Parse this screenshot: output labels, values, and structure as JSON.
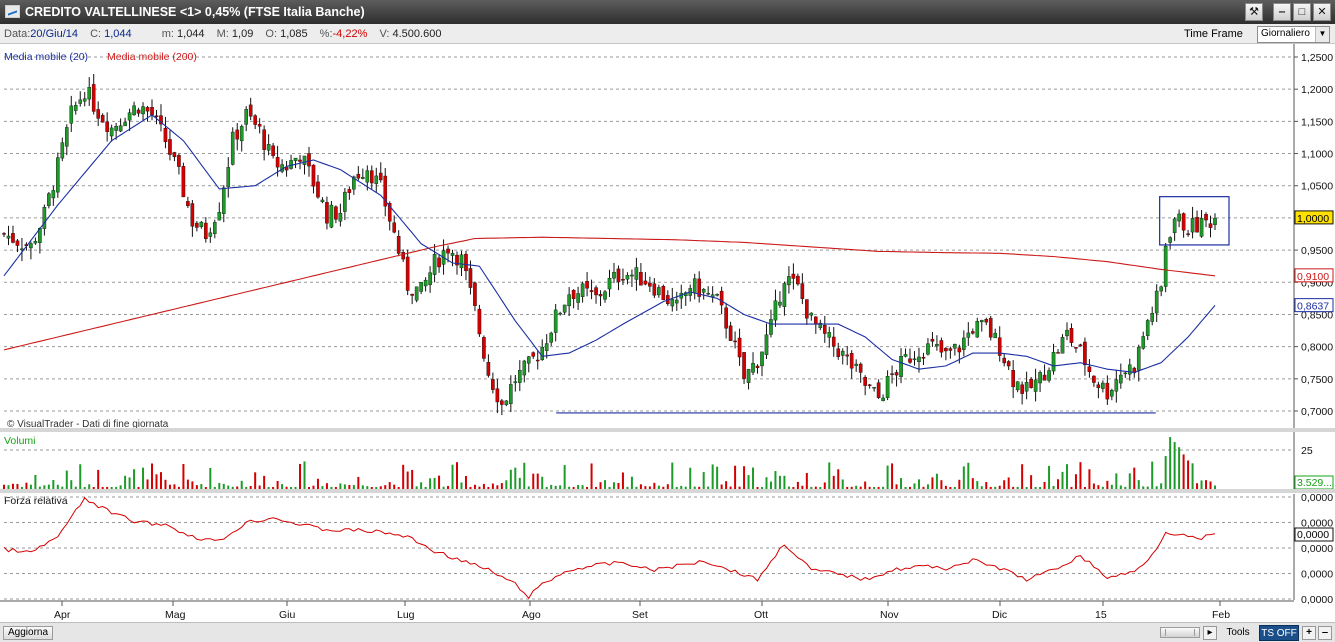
{
  "window": {
    "title": "CREDITO VALTELLINESE <1> 0,45%  (FTSE Italia Banche)",
    "buttons": [
      "tools-icon",
      "minimize-icon",
      "maximize-icon",
      "close-icon"
    ]
  },
  "infobar": {
    "data_label": "Data:",
    "data_value": "20/Giu/14",
    "c_label": "C:",
    "c_value": "1,044",
    "m_label": "m:",
    "m_value": "1,044",
    "M_label": "M:",
    "M_value": "1,09",
    "o_label": "O:",
    "o_value": "1,085",
    "pct_label": "%:",
    "pct_value": "-4,22%",
    "v_label": "V:",
    "v_value": "4.500.600",
    "timeframe_label": "Time Frame",
    "timeframe_value": "Giornaliero"
  },
  "statusbar": {
    "refresh_label": "Aggiorna",
    "tools_label": "Tools",
    "ts_label": "TS OFF"
  },
  "colors": {
    "up_candle": "#1d9b28",
    "down_candle": "#d40000",
    "ma20": "#1b2fa3",
    "ma200": "#cc1a1a",
    "rsi": "#d40000",
    "volume": "#14a314",
    "grid": "#9a9a9a"
  },
  "chart_data": [
    {
      "type": "candlestick",
      "legend": [
        {
          "name": "Media mobile (20)",
          "color": "#1b2fa3"
        },
        {
          "name": "Media mobile (200)",
          "color": "#cc1a1a"
        }
      ],
      "watermark": "© VisualTrader - Dati di fine giornata",
      "x_ticks": [
        "Apr",
        "Mag",
        "Giu",
        "Lug",
        "Ago",
        "Set",
        "Ott",
        "Nov",
        "Dic",
        "15",
        "Feb"
      ],
      "y_ticks": [
        "1,2500",
        "1,2000",
        "1,1500",
        "1,1000",
        "1,0500",
        "1,0000",
        "0,9500",
        "0,9000",
        "0,8500",
        "0,8000",
        "0,7500",
        "0,7000"
      ],
      "ylim": [
        0.68,
        1.26
      ],
      "last_labels": {
        "price": "1,0000",
        "ma200": "0,9100",
        "ma20": "0,8637"
      },
      "price_path": [
        [
          0,
          0.975
        ],
        [
          6,
          0.955
        ],
        [
          9,
          1.005
        ],
        [
          12,
          1.08
        ],
        [
          15,
          1.16
        ],
        [
          18,
          1.2
        ],
        [
          21,
          1.165
        ],
        [
          24,
          1.14
        ],
        [
          27,
          1.16
        ],
        [
          30,
          1.175
        ],
        [
          33,
          1.16
        ],
        [
          36,
          1.12
        ],
        [
          39,
          1.065
        ],
        [
          42,
          0.995
        ],
        [
          45,
          0.975
        ],
        [
          48,
          1.02
        ],
        [
          51,
          1.12
        ],
        [
          54,
          1.16
        ],
        [
          57,
          1.135
        ],
        [
          60,
          1.085
        ],
        [
          63,
          1.08
        ],
        [
          66,
          1.1
        ],
        [
          69,
          1.055
        ],
        [
          72,
          1.005
        ],
        [
          75,
          1.01
        ],
        [
          78,
          1.065
        ],
        [
          81,
          1.08
        ],
        [
          84,
          1.045
        ],
        [
          87,
          0.975
        ],
        [
          90,
          0.895
        ],
        [
          93,
          0.885
        ],
        [
          96,
          0.93
        ],
        [
          99,
          0.955
        ],
        [
          102,
          0.935
        ],
        [
          105,
          0.855
        ],
        [
          108,
          0.76
        ],
        [
          111,
          0.71
        ],
        [
          114,
          0.75
        ],
        [
          117,
          0.77
        ],
        [
          120,
          0.8
        ],
        [
          123,
          0.845
        ],
        [
          126,
          0.885
        ],
        [
          129,
          0.885
        ],
        [
          132,
          0.875
        ],
        [
          135,
          0.9
        ],
        [
          138,
          0.915
        ],
        [
          141,
          0.91
        ],
        [
          144,
          0.9
        ],
        [
          147,
          0.88
        ],
        [
          150,
          0.86
        ],
        [
          153,
          0.895
        ],
        [
          156,
          0.885
        ],
        [
          159,
          0.87
        ],
        [
          162,
          0.82
        ],
        [
          165,
          0.75
        ],
        [
          168,
          0.78
        ],
        [
          171,
          0.83
        ],
        [
          174,
          0.91
        ],
        [
          177,
          0.89
        ],
        [
          180,
          0.84
        ],
        [
          183,
          0.815
        ],
        [
          186,
          0.795
        ],
        [
          189,
          0.77
        ],
        [
          192,
          0.74
        ],
        [
          195,
          0.72
        ],
        [
          198,
          0.755
        ],
        [
          201,
          0.78
        ],
        [
          204,
          0.795
        ],
        [
          207,
          0.8
        ],
        [
          210,
          0.785
        ],
        [
          213,
          0.8
        ],
        [
          216,
          0.83
        ],
        [
          219,
          0.83
        ],
        [
          222,
          0.8
        ],
        [
          225,
          0.75
        ],
        [
          228,
          0.73
        ],
        [
          231,
          0.75
        ],
        [
          234,
          0.785
        ],
        [
          237,
          0.82
        ],
        [
          240,
          0.79
        ],
        [
          243,
          0.75
        ],
        [
          246,
          0.73
        ],
        [
          249,
          0.76
        ],
        [
          252,
          0.77
        ],
        [
          255,
          0.84
        ],
        [
          258,
          0.89
        ],
        [
          259,
          0.96
        ],
        [
          261,
          1.0
        ],
        [
          264,
          0.985
        ],
        [
          267,
          0.99
        ],
        [
          270,
          1.0
        ]
      ],
      "ma20_path": [
        [
          0,
          0.91
        ],
        [
          12,
          1.02
        ],
        [
          24,
          1.12
        ],
        [
          33,
          1.16
        ],
        [
          40,
          1.12
        ],
        [
          48,
          1.045
        ],
        [
          56,
          1.05
        ],
        [
          63,
          1.08
        ],
        [
          69,
          1.09
        ],
        [
          75,
          1.075
        ],
        [
          84,
          1.035
        ],
        [
          93,
          0.96
        ],
        [
          100,
          0.93
        ],
        [
          106,
          0.925
        ],
        [
          114,
          0.84
        ],
        [
          120,
          0.785
        ],
        [
          126,
          0.79
        ],
        [
          132,
          0.81
        ],
        [
          138,
          0.835
        ],
        [
          147,
          0.87
        ],
        [
          153,
          0.885
        ],
        [
          159,
          0.875
        ],
        [
          165,
          0.85
        ],
        [
          171,
          0.835
        ],
        [
          177,
          0.835
        ],
        [
          186,
          0.835
        ],
        [
          192,
          0.815
        ],
        [
          198,
          0.78
        ],
        [
          204,
          0.765
        ],
        [
          210,
          0.77
        ],
        [
          216,
          0.79
        ],
        [
          222,
          0.79
        ],
        [
          228,
          0.785
        ],
        [
          234,
          0.77
        ],
        [
          240,
          0.775
        ],
        [
          246,
          0.765
        ],
        [
          252,
          0.76
        ],
        [
          258,
          0.775
        ],
        [
          264,
          0.815
        ],
        [
          270,
          0.864
        ]
      ],
      "ma200_path": [
        [
          0,
          0.795
        ],
        [
          30,
          0.845
        ],
        [
          60,
          0.895
        ],
        [
          84,
          0.935
        ],
        [
          96,
          0.955
        ],
        [
          105,
          0.968
        ],
        [
          120,
          0.97
        ],
        [
          135,
          0.968
        ],
        [
          150,
          0.966
        ],
        [
          165,
          0.962
        ],
        [
          180,
          0.955
        ],
        [
          195,
          0.948
        ],
        [
          210,
          0.946
        ],
        [
          222,
          0.945
        ],
        [
          234,
          0.94
        ],
        [
          246,
          0.932
        ],
        [
          258,
          0.92
        ],
        [
          270,
          0.91
        ]
      ],
      "support_line": [
        [
          120,
          0.697
        ],
        [
          255,
          0.697
        ]
      ],
      "consolidation_box": {
        "x": [
          259,
          270
        ],
        "y": [
          0.958,
          1.033
        ]
      }
    },
    {
      "type": "bar",
      "title": "Volumi",
      "y_ticks": [
        "25"
      ],
      "last_label": "3.529..."
    },
    {
      "type": "line",
      "title": "Forza relativa",
      "y_ticks": [
        "0,0000",
        "0,0000",
        "0,0000",
        "0,0000",
        "0,0000"
      ],
      "last_label": "0,0000",
      "path": [
        [
          0,
          0.42
        ],
        [
          6,
          0.38
        ],
        [
          12,
          0.55
        ],
        [
          18,
          0.95
        ],
        [
          24,
          0.8
        ],
        [
          30,
          0.7
        ],
        [
          36,
          0.68
        ],
        [
          42,
          0.55
        ],
        [
          48,
          0.5
        ],
        [
          54,
          0.7
        ],
        [
          60,
          0.75
        ],
        [
          66,
          0.68
        ],
        [
          72,
          0.62
        ],
        [
          78,
          0.62
        ],
        [
          84,
          0.6
        ],
        [
          90,
          0.55
        ],
        [
          96,
          0.4
        ],
        [
          102,
          0.3
        ],
        [
          108,
          0.2
        ],
        [
          114,
          0.05
        ],
        [
          117,
          -0.08
        ],
        [
          120,
          0.05
        ],
        [
          126,
          0.2
        ],
        [
          132,
          0.25
        ],
        [
          138,
          0.28
        ],
        [
          144,
          0.2
        ],
        [
          150,
          0.24
        ],
        [
          156,
          0.3
        ],
        [
          162,
          0.2
        ],
        [
          168,
          0.1
        ],
        [
          174,
          0.48
        ],
        [
          180,
          0.2
        ],
        [
          186,
          0.16
        ],
        [
          192,
          0.1
        ],
        [
          198,
          0.2
        ],
        [
          204,
          0.24
        ],
        [
          210,
          0.22
        ],
        [
          216,
          0.3
        ],
        [
          222,
          0.22
        ],
        [
          228,
          0.1
        ],
        [
          234,
          0.2
        ],
        [
          240,
          0.35
        ],
        [
          246,
          0.12
        ],
        [
          252,
          0.18
        ],
        [
          256,
          0.36
        ],
        [
          259,
          0.6
        ],
        [
          262,
          0.58
        ],
        [
          266,
          0.52
        ],
        [
          270,
          0.58
        ]
      ]
    }
  ]
}
